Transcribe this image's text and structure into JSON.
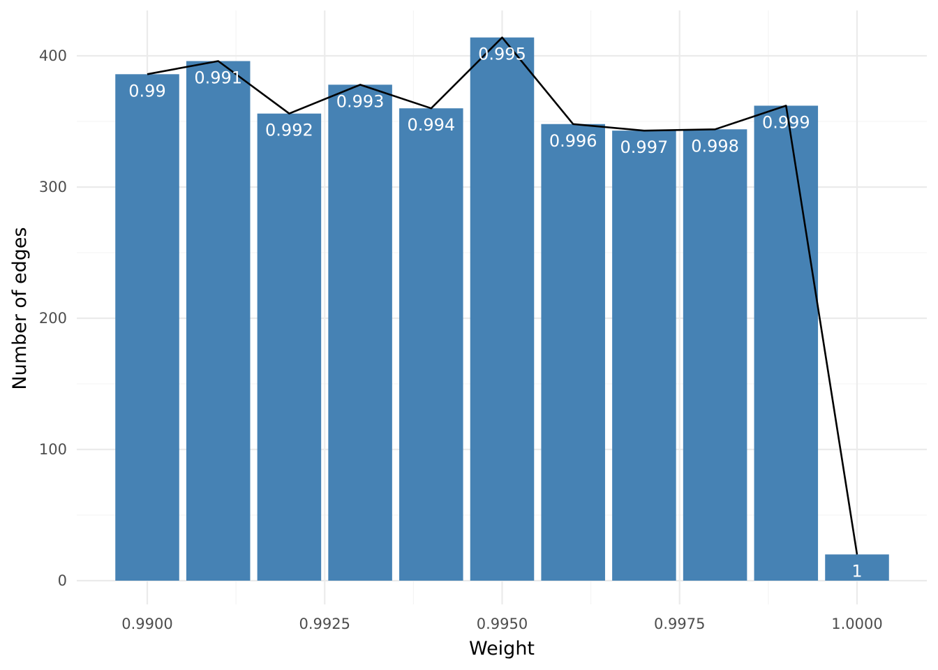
{
  "chart_data": {
    "type": "bar",
    "xlabel": "Weight",
    "ylabel": "Number of edges",
    "xlim": [
      0.9893,
      1.0011
    ],
    "ylim": [
      -20,
      418
    ],
    "x_ticks": [
      {
        "value": 0.99,
        "label": "0.9900"
      },
      {
        "value": 0.9925,
        "label": "0.9925"
      },
      {
        "value": 0.995,
        "label": "0.9950"
      },
      {
        "value": 0.9975,
        "label": "0.9975"
      },
      {
        "value": 1.0,
        "label": "1.0000"
      }
    ],
    "y_ticks": [
      {
        "value": 0,
        "label": "0"
      },
      {
        "value": 100,
        "label": "100"
      },
      {
        "value": 200,
        "label": "200"
      },
      {
        "value": 300,
        "label": "300"
      },
      {
        "value": 400,
        "label": "400"
      }
    ],
    "bar_width": 0.0009,
    "bar_color": "#4682b4",
    "line_color": "#000000",
    "grid": true,
    "bars": [
      {
        "x": 0.99,
        "value": 386,
        "label": "0.99"
      },
      {
        "x": 0.991,
        "value": 396,
        "label": "0.991"
      },
      {
        "x": 0.992,
        "value": 356,
        "label": "0.992"
      },
      {
        "x": 0.993,
        "value": 378,
        "label": "0.993"
      },
      {
        "x": 0.994,
        "value": 360,
        "label": "0.994"
      },
      {
        "x": 0.995,
        "value": 414,
        "label": "0.995"
      },
      {
        "x": 0.996,
        "value": 348,
        "label": "0.996"
      },
      {
        "x": 0.997,
        "value": 343,
        "label": "0.997"
      },
      {
        "x": 0.998,
        "value": 344,
        "label": "0.998"
      },
      {
        "x": 0.999,
        "value": 362,
        "label": "0.999"
      },
      {
        "x": 1.0,
        "value": 20,
        "label": "1"
      }
    ]
  }
}
